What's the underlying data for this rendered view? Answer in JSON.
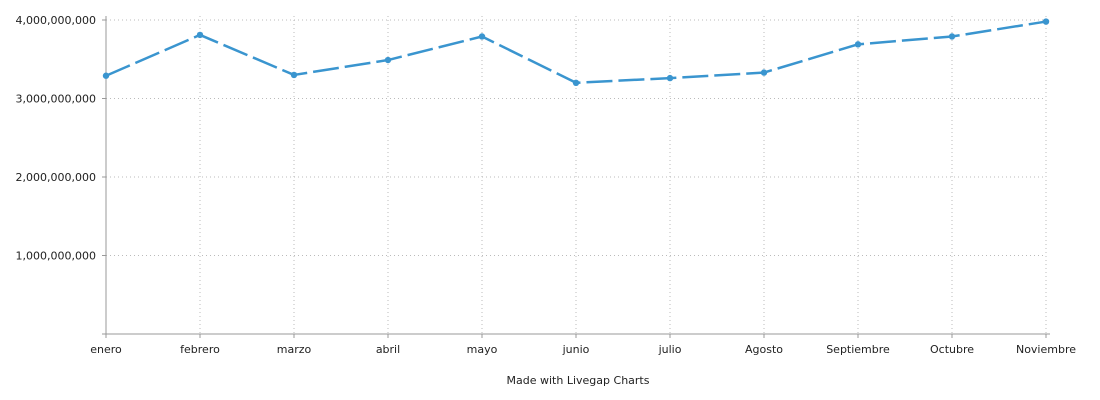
{
  "chart_data": {
    "type": "line",
    "title": "",
    "xlabel": "",
    "ylabel": "",
    "categories": [
      "enero",
      "febrero",
      "marzo",
      "abril",
      "mayo",
      "junio",
      "julio",
      "Agosto",
      "Septiembre",
      "Octubre",
      "Noviembre"
    ],
    "series": [
      {
        "values": [
          3290000000,
          3810000000,
          3300000000,
          3490000000,
          3790000000,
          3200000000,
          3260000000,
          3330000000,
          3690000000,
          3790000000,
          3980000000
        ]
      }
    ],
    "ylim": [
      0,
      4000000000
    ],
    "yticks": [
      1000000000,
      2000000000,
      3000000000,
      4000000000
    ],
    "ytick_labels": [
      "1,000,000,000",
      "2,000,000,000",
      "3,000,000,000",
      "4,000,000,000"
    ],
    "grid": "dotted",
    "line_style": "dashed",
    "colors": {
      "series": "#3a95cf",
      "axis": "#999999",
      "grid": "#bbbbbb",
      "text": "#222222"
    }
  },
  "footer": {
    "credit": "Made with Livegap Charts"
  }
}
